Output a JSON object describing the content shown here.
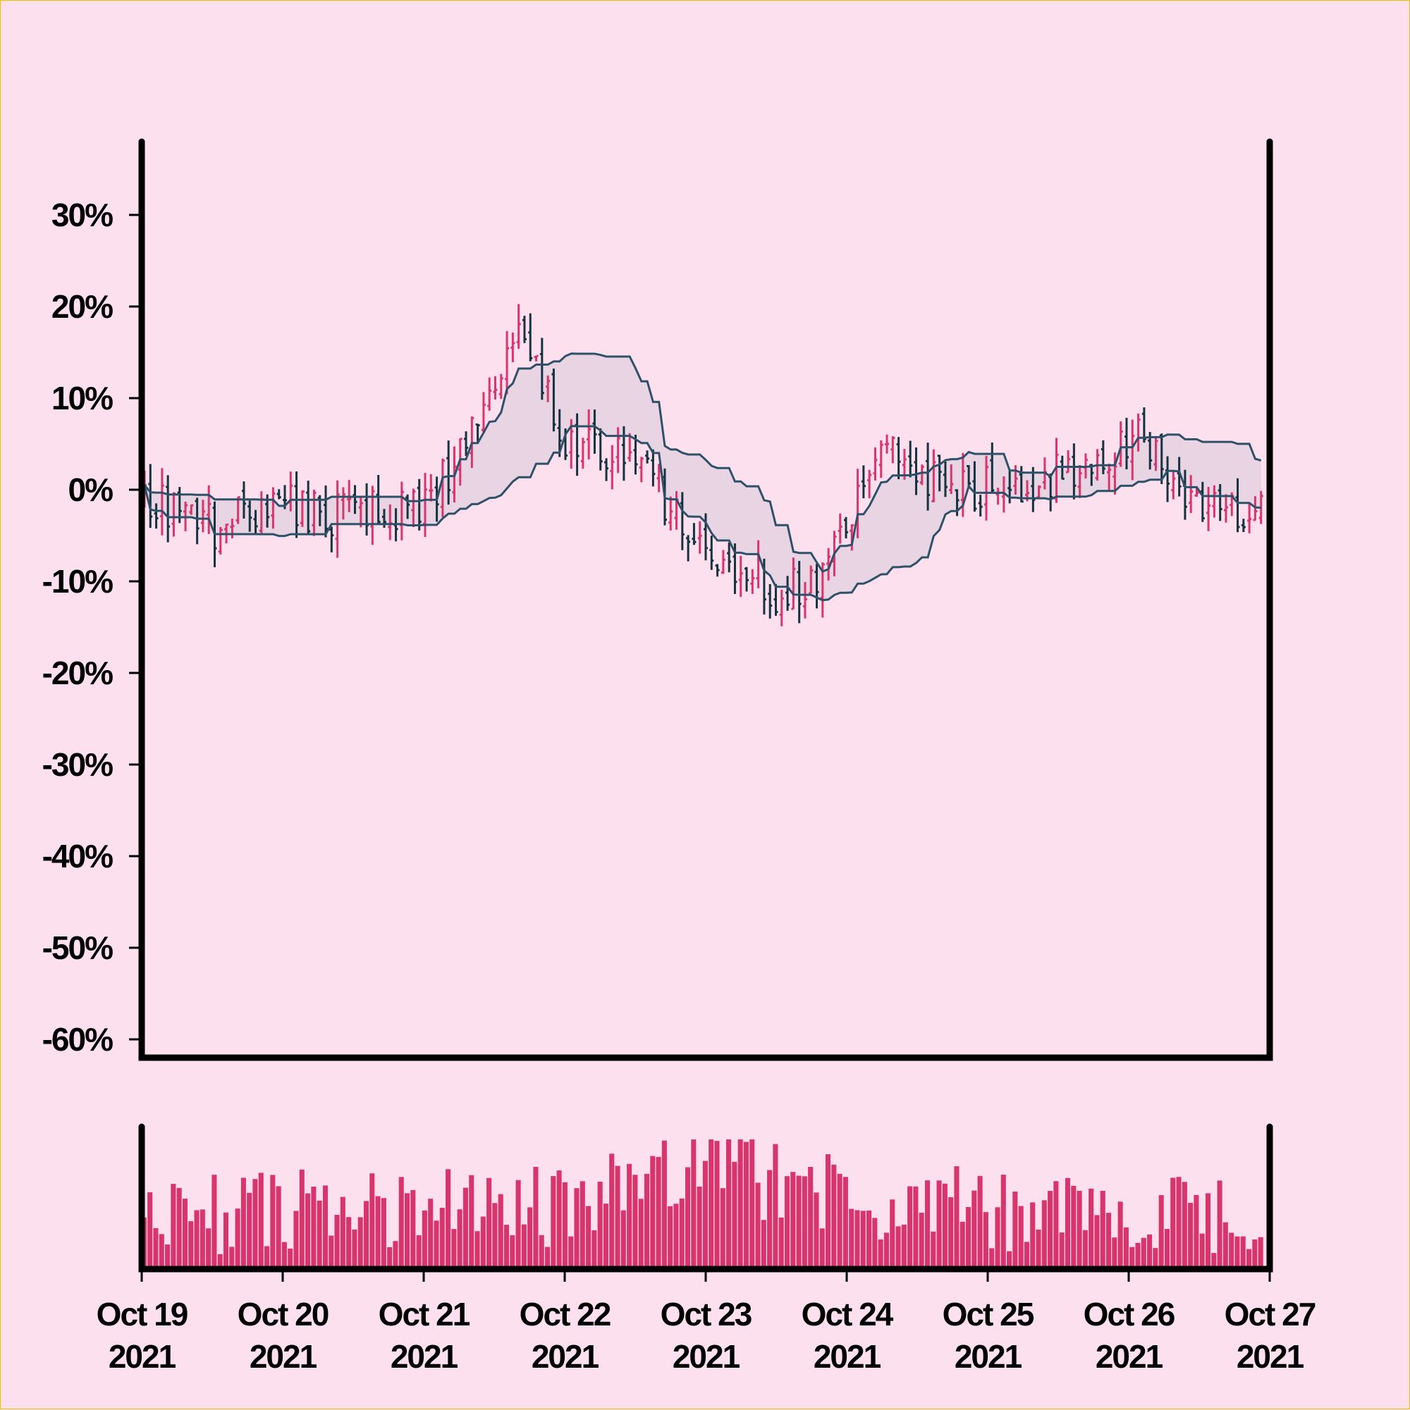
{
  "colors": {
    "background": "#fde0ee",
    "up": "#d8356d",
    "down": "#16323f",
    "band_line": "#2e5068",
    "band_fill": "#e5d3e0",
    "volume": "#d8356d",
    "axis": "#000000"
  },
  "chart_data": [
    {
      "type": "line",
      "subtype": "ohlc_percent_change_with_channel",
      "title": "",
      "xlabel": "",
      "ylabel": "",
      "ylim": [
        -62,
        38
      ],
      "y_ticks": [
        30,
        20,
        10,
        0,
        -10,
        -20,
        -30,
        -40,
        -50,
        -60
      ],
      "y_tick_labels": [
        "30%",
        "20%",
        "10%",
        "0%",
        "-10%",
        "-20%",
        "-30%",
        "-40%",
        "-50%",
        "-60%"
      ],
      "grid": false,
      "legend": "none",
      "x_range": [
        "2021-10-19",
        "2021-10-27"
      ],
      "bar_interval_hours": 1,
      "close_path_keyframes": {
        "hours": [
          0,
          4,
          8,
          12,
          18,
          24,
          30,
          36,
          42,
          48,
          52,
          56,
          60,
          64,
          68,
          72,
          78,
          84,
          90,
          96,
          102,
          108,
          114,
          120,
          126,
          132,
          138,
          144,
          150,
          156,
          162,
          168,
          174,
          180,
          186,
          192
        ],
        "close_pct": [
          -1,
          -2,
          -3,
          -4,
          -2,
          -1,
          -3,
          -2,
          -2,
          -1,
          2,
          8,
          12,
          18,
          12,
          6,
          4,
          3,
          -2,
          -6,
          -9,
          -11,
          -10,
          -3,
          4,
          2,
          0,
          0,
          -1,
          2,
          3,
          6,
          4,
          -2,
          -2,
          -1
        ]
      },
      "channel_lookback_bars": 20
    },
    {
      "type": "bar",
      "role": "volume",
      "y_ticks": [],
      "x_ticks": [
        "2021-10-19",
        "2021-10-20",
        "2021-10-21",
        "2021-10-22",
        "2021-10-23",
        "2021-10-24",
        "2021-10-25",
        "2021-10-26",
        "2021-10-27"
      ],
      "x_tick_labels": [
        [
          "Oct 19",
          "2021"
        ],
        [
          "Oct 20",
          "2021"
        ],
        [
          "Oct 21",
          "2021"
        ],
        [
          "Oct 22",
          "2021"
        ],
        [
          "Oct 23",
          "2021"
        ],
        [
          "Oct 24",
          "2021"
        ],
        [
          "Oct 25",
          "2021"
        ],
        [
          "Oct 26",
          "2021"
        ],
        [
          "Oct 27",
          "2021"
        ]
      ],
      "volume_profile": "random, higher around Oct 23"
    }
  ]
}
